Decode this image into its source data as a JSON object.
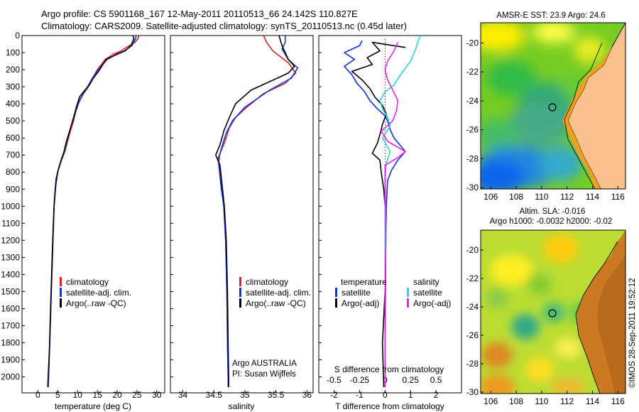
{
  "header": {
    "line1": "Argo profile: CS 5901168_167 12-May-2011 20110513_66 24.142S 110.827E",
    "line2": "Climatology: CARS2009. Satellite-adjusted climatology: synTS_20110513.nc (0.45d later)"
  },
  "colors": {
    "climatology": "#dd2222",
    "satellite": "#1133dd",
    "argo": "#000000",
    "salinity_satellite": "#22dddd",
    "salinity_argo": "#ee22ee",
    "land": "#f7c08c"
  },
  "depth_ticks": [
    "0",
    "100",
    "200",
    "300",
    "400",
    "500",
    "600",
    "700",
    "800",
    "900",
    "1000",
    "1100",
    "1200",
    "1300",
    "1400",
    "1500",
    "1600",
    "1700",
    "1800",
    "1900",
    "2000"
  ],
  "chart_data": [
    {
      "type": "line",
      "xlabel": "temperature (deg C)",
      "xlim": [
        -4,
        32
      ],
      "ylim": [
        0,
        2060
      ],
      "xticks": [
        "0",
        "5",
        "10",
        "15",
        "20",
        "25",
        "30"
      ],
      "legend": [
        "climatology",
        "satellite-adj. clim.",
        "Argo(..raw -QC)"
      ],
      "series": [
        {
          "name": "climatology",
          "points": [
            [
              25.5,
              0
            ],
            [
              25.2,
              20
            ],
            [
              24.5,
              40
            ],
            [
              23.0,
              60
            ],
            [
              21.0,
              90
            ],
            [
              19.0,
              110
            ],
            [
              17.0,
              140
            ],
            [
              15.0,
              200
            ],
            [
              13.5,
              260
            ],
            [
              12.5,
              310
            ],
            [
              11.5,
              340
            ],
            [
              10.5,
              380
            ],
            [
              9.7,
              430
            ],
            [
              9.0,
              500
            ],
            [
              8.2,
              560
            ],
            [
              7.5,
              620
            ],
            [
              6.8,
              680
            ],
            [
              5.8,
              740
            ],
            [
              5.0,
              800
            ],
            [
              4.5,
              880
            ],
            [
              4.1,
              1000
            ],
            [
              3.8,
              1200
            ],
            [
              3.4,
              1500
            ],
            [
              3.0,
              1800
            ],
            [
              2.7,
              2000
            ],
            [
              2.6,
              2060
            ]
          ]
        },
        {
          "name": "satellite-adj. clim.",
          "points": [
            [
              24.8,
              0
            ],
            [
              24.6,
              20
            ],
            [
              23.7,
              60
            ],
            [
              21.8,
              90
            ],
            [
              19.8,
              110
            ],
            [
              17.5,
              140
            ],
            [
              15.2,
              200
            ],
            [
              13.5,
              260
            ],
            [
              12.3,
              310
            ],
            [
              11.0,
              360
            ],
            [
              10.2,
              400
            ],
            [
              9.5,
              450
            ],
            [
              8.8,
              500
            ],
            [
              8.0,
              560
            ],
            [
              7.3,
              620
            ],
            [
              6.7,
              680
            ],
            [
              5.8,
              740
            ],
            [
              5.0,
              800
            ],
            [
              4.5,
              880
            ],
            [
              4.1,
              1000
            ],
            [
              3.8,
              1200
            ],
            [
              3.4,
              1500
            ],
            [
              3.0,
              1800
            ],
            [
              2.7,
              2000
            ],
            [
              2.6,
              2060
            ]
          ]
        },
        {
          "name": "Argo(..raw -QC)",
          "points": [
            [
              24.0,
              0
            ],
            [
              24.2,
              20
            ],
            [
              23.5,
              60
            ],
            [
              22.0,
              90
            ],
            [
              20.0,
              110
            ],
            [
              17.2,
              140
            ],
            [
              15.6,
              200
            ],
            [
              14.0,
              250
            ],
            [
              13.0,
              290
            ],
            [
              11.5,
              330
            ],
            [
              10.5,
              360
            ],
            [
              9.7,
              420
            ],
            [
              9.0,
              480
            ],
            [
              8.0,
              560
            ],
            [
              7.2,
              620
            ],
            [
              6.6,
              680
            ],
            [
              6.0,
              720
            ],
            [
              5.2,
              780
            ],
            [
              4.6,
              840
            ],
            [
              4.2,
              950
            ],
            [
              3.9,
              1100
            ],
            [
              3.6,
              1300
            ],
            [
              3.2,
              1600
            ],
            [
              2.9,
              1850
            ],
            [
              2.6,
              2000
            ],
            [
              2.5,
              2060
            ]
          ]
        }
      ]
    },
    {
      "type": "line",
      "xlabel": "salinity",
      "xlim": [
        33.8,
        36.1
      ],
      "ylim": [
        0,
        2060
      ],
      "xticks": [
        "34",
        "34.5",
        "35",
        "35.5",
        "36"
      ],
      "legend": [
        "climatology",
        "satellite-adj. clim.",
        "Argo(..raw -QC)"
      ],
      "annotations": [
        "Argo AUSTRALIA",
        "PI: Susan Wijffels"
      ],
      "series": [
        {
          "name": "climatology",
          "points": [
            [
              35.3,
              0
            ],
            [
              35.35,
              40
            ],
            [
              35.45,
              90
            ],
            [
              35.7,
              160
            ],
            [
              35.82,
              220
            ],
            [
              35.65,
              280
            ],
            [
              35.3,
              340
            ],
            [
              35.0,
              430
            ],
            [
              34.85,
              480
            ],
            [
              34.75,
              540
            ],
            [
              34.68,
              620
            ],
            [
              34.6,
              690
            ],
            [
              34.58,
              740
            ],
            [
              34.6,
              800
            ],
            [
              34.63,
              900
            ],
            [
              34.66,
              1000
            ],
            [
              34.69,
              1200
            ],
            [
              34.71,
              1500
            ],
            [
              34.72,
              1800
            ],
            [
              34.73,
              2000
            ],
            [
              34.73,
              2060
            ]
          ]
        },
        {
          "name": "satellite-adj. clim.",
          "points": [
            [
              35.65,
              0
            ],
            [
              35.65,
              40
            ],
            [
              35.6,
              80
            ],
            [
              35.7,
              140
            ],
            [
              35.85,
              190
            ],
            [
              35.75,
              250
            ],
            [
              35.4,
              320
            ],
            [
              35.0,
              420
            ],
            [
              34.8,
              500
            ],
            [
              34.7,
              570
            ],
            [
              34.64,
              640
            ],
            [
              34.6,
              690
            ],
            [
              34.57,
              720
            ],
            [
              34.58,
              760
            ],
            [
              34.62,
              900
            ],
            [
              34.66,
              1000
            ],
            [
              34.69,
              1200
            ],
            [
              34.71,
              1500
            ],
            [
              34.72,
              1800
            ],
            [
              34.73,
              2000
            ],
            [
              34.73,
              2060
            ]
          ]
        },
        {
          "name": "Argo(..raw -QC)",
          "points": [
            [
              35.55,
              0
            ],
            [
              35.6,
              60
            ],
            [
              35.65,
              100
            ],
            [
              35.7,
              140
            ],
            [
              35.8,
              180
            ],
            [
              35.7,
              220
            ],
            [
              35.4,
              270
            ],
            [
              35.1,
              320
            ],
            [
              34.85,
              400
            ],
            [
              34.75,
              480
            ],
            [
              34.66,
              560
            ],
            [
              34.6,
              640
            ],
            [
              34.53,
              700
            ],
            [
              34.6,
              760
            ],
            [
              34.64,
              900
            ],
            [
              34.67,
              1000
            ],
            [
              34.7,
              1200
            ],
            [
              34.72,
              1500
            ],
            [
              34.73,
              1800
            ],
            [
              34.74,
              2000
            ],
            [
              34.74,
              2060
            ]
          ]
        }
      ]
    },
    {
      "type": "line",
      "xlabel": "T difference from climatology",
      "x2label": "S difference from climatology",
      "xlim": [
        -2.6,
        3.0
      ],
      "ylim": [
        0,
        2060
      ],
      "xticks": [
        "-2",
        "-1",
        "0",
        "1",
        "2"
      ],
      "x2ticks": [
        "-0.5",
        "-0.25",
        "0",
        "0.25",
        "0.5"
      ],
      "legend_headers": [
        "temperature",
        "salinity"
      ],
      "legend": [
        "satellite",
        "Argo(-adj)",
        "satellite",
        "Argo(-adj)"
      ],
      "series": [
        {
          "name": "satellite",
          "points": [
            [
              -0.9,
              30
            ],
            [
              -1.0,
              60
            ],
            [
              -1.6,
              100
            ],
            [
              -1.2,
              140
            ],
            [
              -1.6,
              180
            ],
            [
              -1.3,
              230
            ],
            [
              -1.1,
              280
            ],
            [
              -0.8,
              330
            ],
            [
              -0.6,
              380
            ],
            [
              -0.3,
              430
            ],
            [
              0.0,
              470
            ],
            [
              0.1,
              500
            ],
            [
              0.2,
              550
            ],
            [
              0.35,
              600
            ],
            [
              0.8,
              680
            ],
            [
              0.5,
              730
            ],
            [
              0.25,
              790
            ],
            [
              0.1,
              850
            ],
            [
              0.05,
              1000
            ],
            [
              0.03,
              1200
            ],
            [
              0.02,
              1500
            ],
            [
              0.0,
              1800
            ],
            [
              0.0,
              2060
            ]
          ]
        },
        {
          "name": "Argo(-adj)",
          "points": [
            [
              0.8,
              70
            ],
            [
              -0.5,
              40
            ],
            [
              -0.2,
              90
            ],
            [
              -0.7,
              130
            ],
            [
              -0.5,
              170
            ],
            [
              -1.3,
              210
            ],
            [
              -0.9,
              260
            ],
            [
              -0.6,
              310
            ],
            [
              -0.4,
              360
            ],
            [
              -0.1,
              410
            ],
            [
              0.05,
              460
            ],
            [
              -0.1,
              520
            ],
            [
              -0.2,
              580
            ],
            [
              -0.3,
              630
            ],
            [
              -0.5,
              690
            ],
            [
              -0.2,
              730
            ],
            [
              -0.15,
              800
            ],
            [
              -0.05,
              900
            ],
            [
              0.0,
              1000
            ],
            [
              0.02,
              1200
            ],
            [
              0.0,
              1500
            ],
            [
              -0.1,
              1800
            ],
            [
              -0.05,
              2060
            ]
          ]
        },
        {
          "name": "satellite",
          "points": [
            [
              1.4,
              0
            ],
            [
              1.3,
              30
            ],
            [
              1.2,
              80
            ],
            [
              1.0,
              150
            ],
            [
              0.6,
              230
            ],
            [
              0.35,
              290
            ],
            [
              0.0,
              330
            ],
            [
              -0.2,
              380
            ],
            [
              -0.1,
              430
            ],
            [
              0.1,
              480
            ],
            [
              0.2,
              530
            ],
            [
              -0.1,
              600
            ],
            [
              0.2,
              680
            ],
            [
              0.05,
              750
            ],
            [
              0.0,
              850
            ],
            [
              0.0,
              1000
            ],
            [
              0.0,
              1200
            ],
            [
              0.0,
              1500
            ],
            [
              0.0,
              1800
            ],
            [
              0.0,
              2060
            ]
          ]
        },
        {
          "name": "Argo(-adj)",
          "points": [
            [
              0.5,
              40
            ],
            [
              0.35,
              90
            ],
            [
              0.1,
              150
            ],
            [
              0.0,
              200
            ],
            [
              0.1,
              260
            ],
            [
              0.3,
              320
            ],
            [
              0.5,
              380
            ],
            [
              0.45,
              440
            ],
            [
              0.3,
              500
            ],
            [
              -0.15,
              560
            ],
            [
              0.1,
              620
            ],
            [
              0.8,
              680
            ],
            [
              0.45,
              720
            ],
            [
              0.0,
              760
            ],
            [
              0.0,
              800
            ],
            [
              0.0,
              900
            ],
            [
              0.02,
              1000
            ],
            [
              0.03,
              1200
            ],
            [
              0.0,
              1500
            ],
            [
              0.0,
              1800
            ],
            [
              0.0,
              2060
            ]
          ]
        }
      ]
    }
  ],
  "maps": {
    "sst_title": "AMSR-E SST: 23.9 Argo: 24.6",
    "sla_title1": "Altim. SLA: -0.016",
    "sla_title2": "Argo h1000: -0.0032 h2000: -0.02",
    "lon_ticks": [
      "106",
      "108",
      "110",
      "112",
      "114",
      "116"
    ],
    "lat_ticks": [
      "-20",
      "-22",
      "-24",
      "-26",
      "-28",
      "-30"
    ],
    "lon_range": [
      105.2,
      116.6
    ],
    "lat_range": [
      -30.1,
      -18.6
    ],
    "float_position": {
      "lon": 110.827,
      "lat": -24.142
    }
  },
  "footer": "©IMOS 28-Sep-2011 19:52:12"
}
